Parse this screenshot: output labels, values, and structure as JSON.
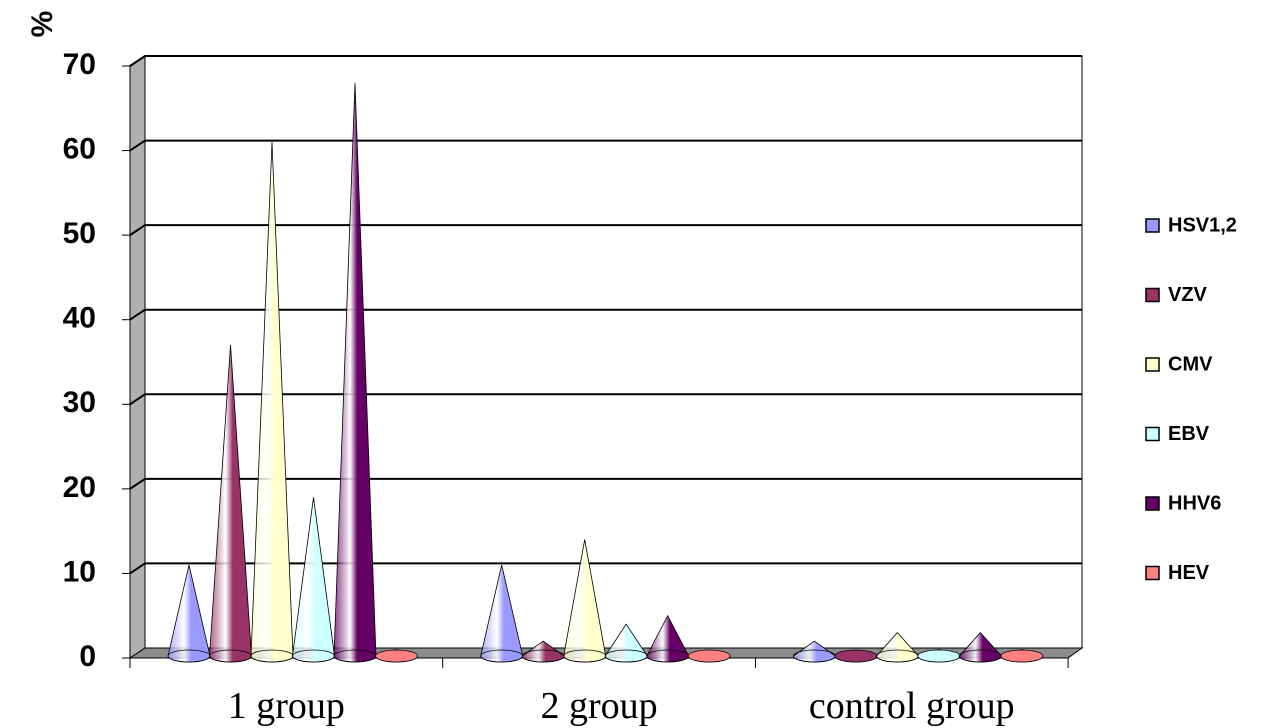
{
  "chart_data": {
    "type": "bar",
    "bar_shape": "cone-3d",
    "title": "",
    "xlabel": "",
    "ylabel": "%",
    "ylim": [
      0,
      70
    ],
    "yticks": [
      "0",
      "10",
      "20",
      "30",
      "40",
      "50",
      "60",
      "70"
    ],
    "grid": true,
    "legend_position": "right",
    "categories": [
      "1 group",
      "2 group",
      "control group"
    ],
    "series": [
      {
        "name": "HSV1,2",
        "color": "#9999ff",
        "values": [
          11,
          11,
          2
        ]
      },
      {
        "name": "VZV",
        "color": "#993366",
        "values": [
          37,
          2,
          0.5
        ]
      },
      {
        "name": "CMV",
        "color": "#ffffcc",
        "values": [
          61,
          14,
          3
        ]
      },
      {
        "name": "EBV",
        "color": "#ccffff",
        "values": [
          19,
          4,
          1
        ]
      },
      {
        "name": "HHV6",
        "color": "#660066",
        "values": [
          68,
          5,
          3
        ]
      },
      {
        "name": "HEV",
        "color": "#ff8080",
        "values": [
          1,
          0.5,
          1
        ]
      }
    ]
  }
}
